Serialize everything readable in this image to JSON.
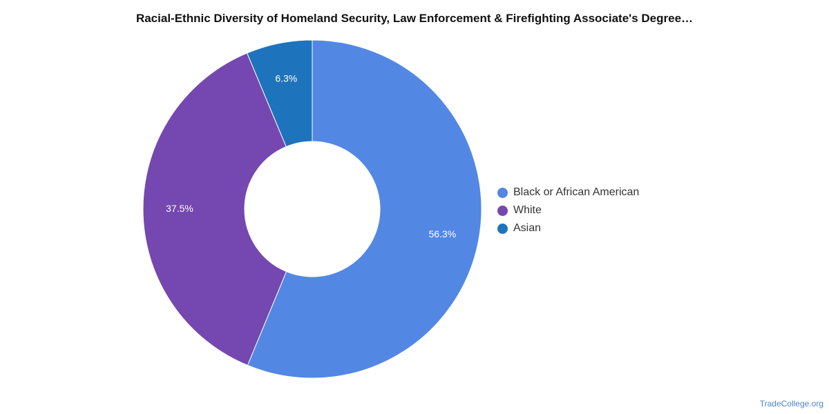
{
  "chart_data": {
    "type": "pie",
    "title": "Racial-Ethnic Diversity of Homeland Security, Law Enforcement & Firefighting Associate's Degree…",
    "categories": [
      "Black or African American",
      "White",
      "Asian"
    ],
    "values": [
      56.3,
      37.5,
      6.3
    ],
    "labels": [
      "56.3%",
      "37.5%",
      "6.3%"
    ],
    "colors": [
      "#5387e4",
      "#7547b0",
      "#1e73bd"
    ],
    "donut": true,
    "legend_position": "right"
  },
  "footer": {
    "source": "TradeCollege.org"
  }
}
